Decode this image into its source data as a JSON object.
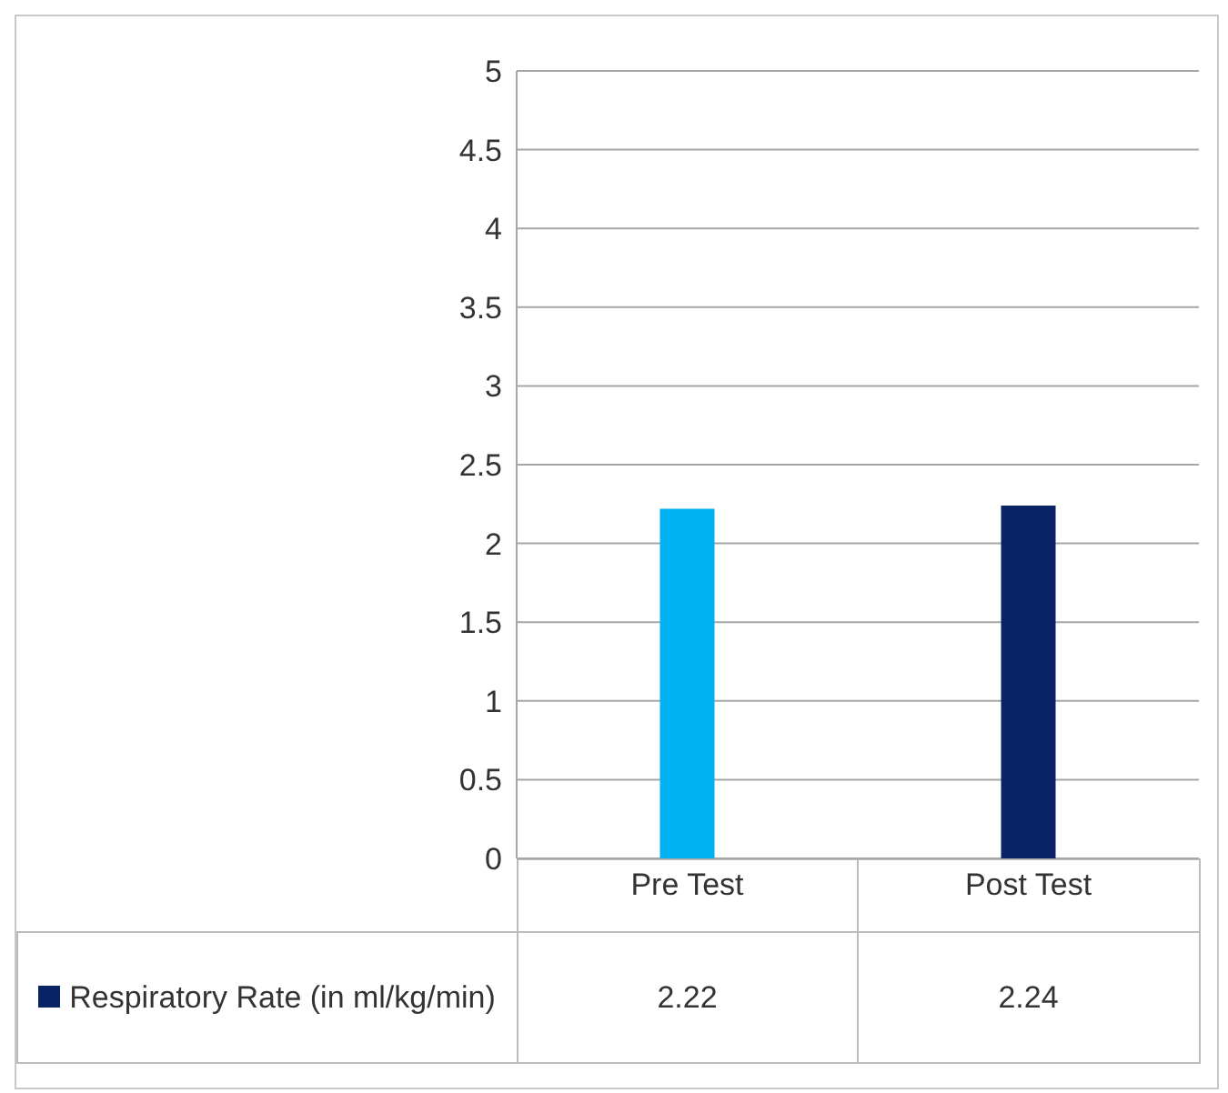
{
  "chart_data": {
    "type": "bar",
    "categories": [
      "Pre Test",
      "Post Test"
    ],
    "series": [
      {
        "name": "Respiratory Rate (in ml/kg/min)",
        "color": "#0a2366",
        "colors": [
          "#00b0f0",
          "#0a2366"
        ],
        "values": [
          2.22,
          2.24
        ]
      }
    ],
    "ylim": [
      0,
      5
    ],
    "yticks": [
      0,
      0.5,
      1,
      1.5,
      2,
      2.5,
      3,
      3.5,
      4,
      4.5,
      5
    ],
    "grid": "y",
    "legend": "bottom",
    "data_labels": true
  }
}
